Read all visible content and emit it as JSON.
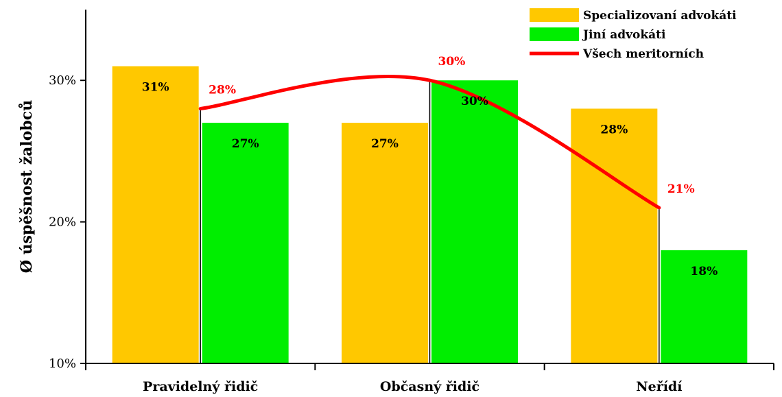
{
  "chart_data": {
    "type": "bar",
    "title": "",
    "xlabel": "",
    "ylabel": "Ø úspěšnost žalobců",
    "ylim": [
      10,
      35
    ],
    "yticks": [
      10,
      20,
      30
    ],
    "ytick_labels": [
      "10%",
      "20%",
      "30%"
    ],
    "categories": [
      "Pravidelný řidič",
      "Občasný řidič",
      "Neřídí"
    ],
    "series": [
      {
        "name": "Specializovaní advokáti",
        "type": "bar",
        "color": "#ffc800",
        "values": [
          31,
          27,
          28
        ],
        "labels": [
          "31%",
          "27%",
          "28%"
        ]
      },
      {
        "name": "Jiní advokáti",
        "type": "bar",
        "color": "#00ee00",
        "values": [
          27,
          30,
          18
        ],
        "labels": [
          "27%",
          "30%",
          "18%"
        ]
      },
      {
        "name": "Všech meritorních",
        "type": "line",
        "color": "#ff0000",
        "values": [
          28,
          30,
          21
        ],
        "labels": [
          "28%",
          "30%",
          "21%"
        ]
      }
    ],
    "grid": false,
    "legend": "top-right"
  }
}
